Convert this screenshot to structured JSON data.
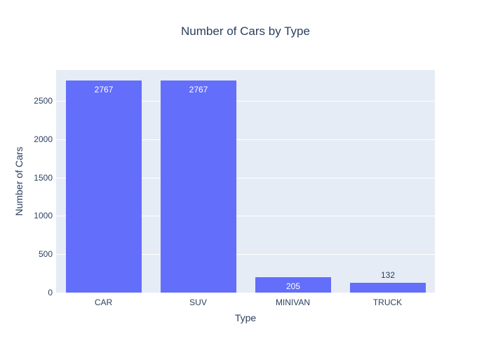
{
  "chart_data": {
    "type": "bar",
    "title": "Number of Cars by Type",
    "xlabel": "Type",
    "ylabel": "Number of Cars",
    "categories": [
      "CAR",
      "SUV",
      "MINIVAN",
      "TRUCK"
    ],
    "values": [
      2767,
      2767,
      205,
      132
    ],
    "bar_labels": [
      "2767",
      "2767",
      "205",
      "132"
    ],
    "label_positions": [
      "inside",
      "inside",
      "inside",
      "outside"
    ],
    "ylim": [
      0,
      2900
    ],
    "yticks": [
      0,
      500,
      1000,
      1500,
      2000,
      2500
    ],
    "grid": true,
    "legend": "none",
    "colors": {
      "bar": "#636efa",
      "plot_background": "#e5ecf6",
      "grid": "#ffffff",
      "text": "#2a3f5f",
      "bar_label_inside": "#ffffff",
      "page_background": "#ffffff"
    }
  }
}
